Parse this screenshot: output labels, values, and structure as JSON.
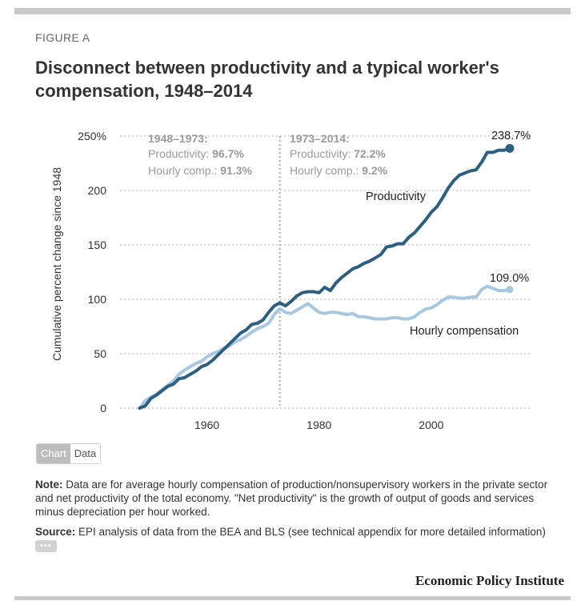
{
  "figure_label": "FIGURE A",
  "title": "Disconnect between productivity and a typical worker's compensation, 1948–2014",
  "annotations": {
    "period1": {
      "head": "1948–1973:",
      "prod_label": "Productivity: ",
      "prod_value": "96.7%",
      "comp_label": "Hourly comp.: ",
      "comp_value": "91.3%"
    },
    "period2": {
      "head": "1973–2014:",
      "prod_label": "Productivity: ",
      "prod_value": "72.2%",
      "comp_label": "Hourly comp.: ",
      "comp_value": "9.2%"
    },
    "end_productivity": "238.7%",
    "end_compensation": "109.0%"
  },
  "toggle": {
    "chart": "Chart",
    "data": "Data"
  },
  "note": {
    "label": "Note:",
    "text": " Data are for average hourly compensation of production/nonsupervisory workers in the private sector and net productivity of the total economy. \"Net productivity\" is the growth of output of goods and services minus depreciation per hour worked."
  },
  "source": {
    "label": "Source:",
    "text": " EPI analysis of data from the BEA and BLS (see technical appendix for more detailed information)",
    "more": "•••"
  },
  "publisher": "Economic Policy Institute",
  "colors": {
    "productivity": "#2e5f7e",
    "compensation": "#a8c8e2",
    "grid": "#cccccc"
  },
  "chart_data": {
    "type": "line",
    "title": "Disconnect between productivity and a typical worker's compensation, 1948–2014",
    "xlabel": "",
    "ylabel": "Cumulative percent change since 1948",
    "xlim": [
      1944.5,
      2018
    ],
    "ylim": [
      0,
      250
    ],
    "x_ticks": [
      1960,
      1980,
      2000
    ],
    "y_ticks": [
      0,
      50,
      100,
      150,
      200,
      250
    ],
    "y_tick_labels": [
      "0",
      "50",
      "100",
      "150",
      "200",
      "250%"
    ],
    "x_tick_labels": [
      "1960",
      "1980",
      "2000"
    ],
    "reference_line": {
      "x": 1973,
      "style": "dotted"
    },
    "series": [
      {
        "name": "Productivity",
        "x": [
          1948,
          1949,
          1950,
          1951,
          1952,
          1953,
          1954,
          1955,
          1956,
          1957,
          1958,
          1959,
          1960,
          1961,
          1962,
          1963,
          1964,
          1965,
          1966,
          1967,
          1968,
          1969,
          1970,
          1971,
          1972,
          1973,
          1974,
          1975,
          1976,
          1977,
          1978,
          1979,
          1980,
          1981,
          1982,
          1983,
          1984,
          1985,
          1986,
          1987,
          1988,
          1989,
          1990,
          1991,
          1992,
          1993,
          1994,
          1995,
          1996,
          1997,
          1998,
          1999,
          2000,
          2001,
          2002,
          2003,
          2004,
          2005,
          2006,
          2007,
          2008,
          2009,
          2010,
          2011,
          2012,
          2013,
          2014
        ],
        "values": [
          0,
          2,
          9,
          12,
          16,
          20,
          22,
          27,
          28,
          31,
          34,
          38,
          40,
          44,
          49,
          54,
          59,
          64,
          69,
          72,
          77,
          78,
          81,
          88,
          94,
          96.7,
          94,
          98,
          103,
          106,
          107,
          107,
          106,
          111,
          108,
          115,
          120,
          124,
          128,
          130,
          133,
          135,
          138,
          141,
          148,
          149,
          151,
          151,
          157,
          161,
          167,
          173,
          180,
          185,
          193,
          202,
          209,
          214,
          216,
          218,
          219,
          226,
          235,
          235,
          237,
          237,
          238.7
        ]
      },
      {
        "name": "Hourly compensation",
        "x": [
          1948,
          1949,
          1950,
          1951,
          1952,
          1953,
          1954,
          1955,
          1956,
          1957,
          1958,
          1959,
          1960,
          1961,
          1962,
          1963,
          1964,
          1965,
          1966,
          1967,
          1968,
          1969,
          1970,
          1971,
          1972,
          1973,
          1974,
          1975,
          1976,
          1977,
          1978,
          1979,
          1980,
          1981,
          1982,
          1983,
          1984,
          1985,
          1986,
          1987,
          1988,
          1989,
          1990,
          1991,
          1992,
          1993,
          1994,
          1995,
          1996,
          1997,
          1998,
          1999,
          2000,
          2001,
          2002,
          2003,
          2004,
          2005,
          2006,
          2007,
          2008,
          2009,
          2010,
          2011,
          2012,
          2013,
          2014
        ],
        "values": [
          0,
          7,
          10,
          13,
          17,
          21,
          25,
          31,
          35,
          38,
          41,
          43,
          47,
          50,
          52,
          55,
          57,
          61,
          63,
          66,
          70,
          73,
          75,
          78,
          86,
          91.3,
          88,
          87,
          90,
          93,
          96,
          92,
          88,
          87,
          88,
          88,
          87,
          86,
          87,
          84,
          84,
          83,
          82,
          82,
          82,
          83,
          83,
          82,
          82,
          84,
          88,
          91,
          92,
          95,
          99,
          102,
          102,
          101,
          101,
          102,
          102,
          109,
          112,
          110,
          108,
          108,
          109.0
        ]
      }
    ],
    "series_labels": [
      "Productivity",
      "Hourly compensation"
    ]
  }
}
